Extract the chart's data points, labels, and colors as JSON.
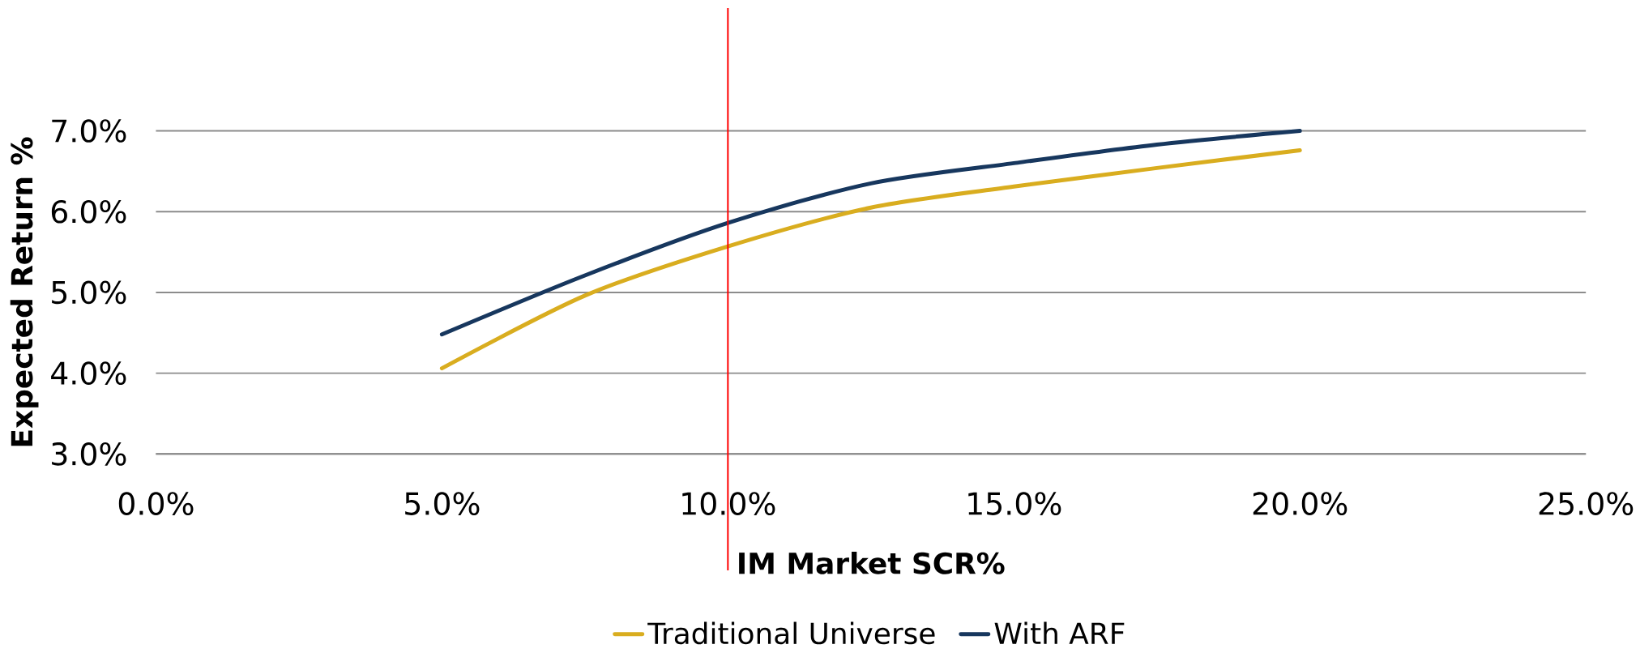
{
  "chart_data": {
    "type": "line",
    "xlabel": "IM Market SCR%",
    "ylabel": "Expected Return %",
    "xlim": [
      0,
      25
    ],
    "ylim": [
      3,
      7
    ],
    "xticks": [
      {
        "value": 0,
        "label": "0.0%"
      },
      {
        "value": 5,
        "label": "5.0%"
      },
      {
        "value": 10,
        "label": "10.0%"
      },
      {
        "value": 15,
        "label": "15.0%"
      },
      {
        "value": 20,
        "label": "20.0%"
      },
      {
        "value": 25,
        "label": "25.0%"
      }
    ],
    "yticks": [
      {
        "value": 3,
        "label": "3.0%"
      },
      {
        "value": 4,
        "label": "4.0%"
      },
      {
        "value": 5,
        "label": "5.0%"
      },
      {
        "value": 6,
        "label": "6.0%"
      },
      {
        "value": 7,
        "label": "7.0%"
      }
    ],
    "x": [
      5,
      7.5,
      10,
      12.5,
      15,
      17.5,
      20
    ],
    "series": [
      {
        "name": "Traditional Universe",
        "color": "#d9ad1f",
        "values": [
          4.06,
          4.96,
          5.57,
          6.05,
          6.31,
          6.54,
          6.76
        ]
      },
      {
        "name": "With ARF",
        "color": "#17375e",
        "values": [
          4.48,
          5.21,
          5.86,
          6.35,
          6.6,
          6.83,
          7.0
        ]
      }
    ],
    "ref_lines": [
      {
        "axis": "x",
        "value": 10,
        "color": "#ff0000"
      }
    ],
    "grid": "y",
    "legend": "bottom",
    "marker": "none",
    "line_style": "solid"
  }
}
